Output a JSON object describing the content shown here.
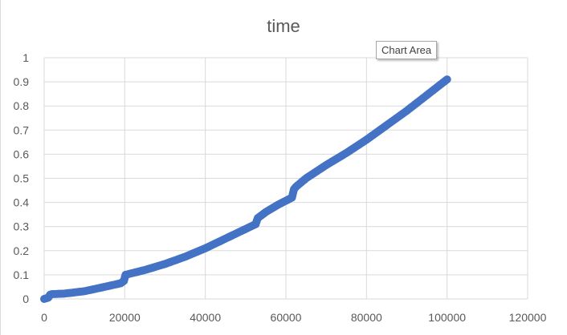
{
  "tooltip": {
    "label": "Chart Area"
  },
  "colors": {
    "series": "#4472c4",
    "grid": "#d9d9d9",
    "text": "#595959",
    "title": "#595959"
  },
  "chart_data": {
    "type": "scatter",
    "title": "time",
    "xlabel": "",
    "ylabel": "",
    "xlim": [
      0,
      120000
    ],
    "ylim": [
      0,
      1
    ],
    "x_ticks": [
      0,
      20000,
      40000,
      60000,
      80000,
      100000,
      120000
    ],
    "y_ticks": [
      0,
      0.1,
      0.2,
      0.3,
      0.4,
      0.5,
      0.6,
      0.7,
      0.8,
      0.9,
      1
    ],
    "grid": true,
    "legend": "none",
    "series": [
      {
        "x": [
          0,
          1000,
          1500,
          2000,
          5000,
          10000,
          15000,
          19000,
          19800,
          20200,
          25000,
          30000,
          35000,
          40000,
          45000,
          50000,
          52500,
          53000,
          55000,
          58000,
          61500,
          62000,
          62500,
          65000,
          70000,
          75000,
          80000,
          85000,
          90000,
          95000,
          100000
        ],
        "y": [
          0.0,
          0.005,
          0.018,
          0.02,
          0.022,
          0.032,
          0.05,
          0.065,
          0.075,
          0.1,
          0.12,
          0.145,
          0.175,
          0.21,
          0.25,
          0.29,
          0.31,
          0.335,
          0.36,
          0.39,
          0.42,
          0.455,
          0.465,
          0.5,
          0.555,
          0.605,
          0.66,
          0.72,
          0.78,
          0.845,
          0.91
        ]
      }
    ]
  }
}
